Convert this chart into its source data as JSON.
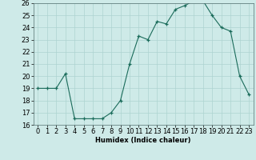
{
  "x": [
    0,
    1,
    2,
    3,
    4,
    5,
    6,
    7,
    8,
    9,
    10,
    11,
    12,
    13,
    14,
    15,
    16,
    17,
    18,
    19,
    20,
    21,
    22,
    23
  ],
  "y": [
    19,
    19,
    19,
    20.2,
    16.5,
    16.5,
    16.5,
    16.5,
    17,
    18,
    21,
    23.3,
    23,
    24.5,
    24.3,
    25.5,
    25.8,
    26.2,
    26.2,
    25,
    24,
    23.7,
    20,
    18.5
  ],
  "xlabel": "Humidex (Indice chaleur)",
  "ylim": [
    16,
    26
  ],
  "xlim": [
    -0.5,
    23.5
  ],
  "yticks": [
    16,
    17,
    18,
    19,
    20,
    21,
    22,
    23,
    24,
    25,
    26
  ],
  "xticks": [
    0,
    1,
    2,
    3,
    4,
    5,
    6,
    7,
    8,
    9,
    10,
    11,
    12,
    13,
    14,
    15,
    16,
    17,
    18,
    19,
    20,
    21,
    22,
    23
  ],
  "line_color": "#1a6b5a",
  "marker": "+",
  "bg_color": "#ceeae8",
  "grid_color": "#aed4d0",
  "label_fontsize": 6,
  "tick_fontsize": 6
}
